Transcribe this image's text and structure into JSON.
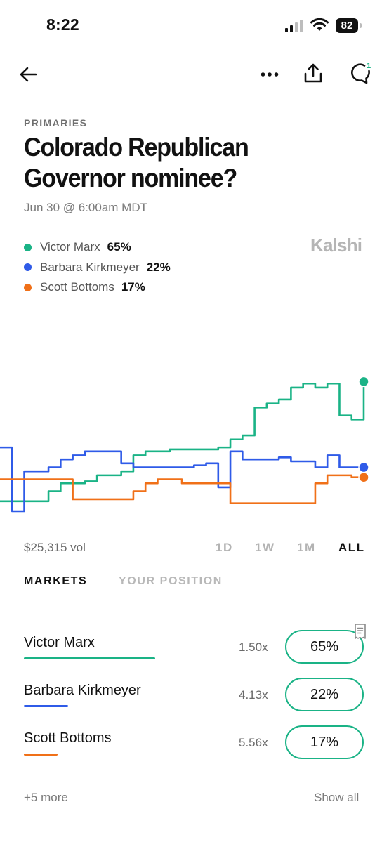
{
  "status_bar": {
    "time": "8:22",
    "battery": "82"
  },
  "nav": {
    "back_icon": "arrow-left-icon",
    "more_icon": "more-horizontal-icon",
    "share_icon": "share-icon",
    "comment_icon": "comment-icon",
    "comment_badge": "1"
  },
  "market": {
    "category": "PRIMARIES",
    "title": "Colorado Republican Governor nominee?",
    "date": "Jun 30 @ 6:00am MDT",
    "brand": "Kalshi"
  },
  "legend": [
    {
      "name": "Victor Marx",
      "pct": "65%",
      "color": "#1ab386"
    },
    {
      "name": "Barbara Kirkmeyer",
      "pct": "22%",
      "color": "#2f5be8"
    },
    {
      "name": "Scott Bottoms",
      "pct": "17%",
      "color": "#f07018"
    }
  ],
  "chart_data": {
    "type": "line",
    "ylim": [
      0,
      100
    ],
    "x": [
      0,
      1,
      2,
      3,
      4,
      5,
      6,
      7,
      8,
      9,
      10,
      11,
      12,
      13,
      14,
      15,
      16,
      17,
      18,
      19,
      20,
      21,
      22,
      23,
      24,
      25,
      26,
      27,
      28,
      29,
      30
    ],
    "series": [
      {
        "name": "Victor Marx",
        "color": "#1ab386",
        "values": [
          5,
          5,
          5,
          5,
          10,
          14,
          14,
          15,
          18,
          18,
          20,
          28,
          30,
          30,
          31,
          31,
          31,
          31,
          32,
          36,
          38,
          52,
          54,
          56,
          62,
          64,
          62,
          64,
          48,
          46,
          65
        ]
      },
      {
        "name": "Barbara Kirkmeyer",
        "color": "#2f5be8",
        "values": [
          32,
          0,
          20,
          20,
          22,
          26,
          28,
          30,
          30,
          30,
          24,
          22,
          22,
          22,
          22,
          22,
          23,
          24,
          12,
          30,
          26,
          26,
          26,
          27,
          25,
          25,
          22,
          28,
          22,
          22,
          22
        ]
      },
      {
        "name": "Scott Bottoms",
        "color": "#f07018",
        "values": [
          16,
          16,
          16,
          16,
          16,
          16,
          6,
          6,
          6,
          6,
          6,
          10,
          14,
          16,
          16,
          14,
          14,
          14,
          14,
          4,
          4,
          4,
          4,
          4,
          4,
          4,
          14,
          18,
          18,
          17,
          17
        ]
      }
    ]
  },
  "chart_meta": {
    "volume": "$25,315 vol"
  },
  "ranges": [
    {
      "label": "1D",
      "active": false
    },
    {
      "label": "1W",
      "active": false
    },
    {
      "label": "1M",
      "active": false
    },
    {
      "label": "ALL",
      "active": true
    }
  ],
  "tabs": [
    {
      "label": "MARKETS",
      "active": true
    },
    {
      "label": "YOUR POSITION",
      "active": false
    }
  ],
  "markets": [
    {
      "name": "Victor Marx",
      "multiplier": "1.50x",
      "price": "65%",
      "color": "#1ab386"
    },
    {
      "name": "Barbara Kirkmeyer",
      "multiplier": "4.13x",
      "price": "22%",
      "color": "#2f5be8"
    },
    {
      "name": "Scott Bottoms",
      "multiplier": "5.56x",
      "price": "17%",
      "color": "#f07018"
    }
  ],
  "footer": {
    "more": "+5 more",
    "show_all": "Show all"
  }
}
